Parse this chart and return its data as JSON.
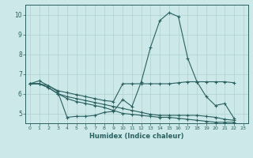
{
  "xlabel": "Humidex (Indice chaleur)",
  "bg_color": "#cce8e8",
  "grid_color": "#b0d0d0",
  "line_color": "#2a6060",
  "xlim": [
    -0.5,
    23.5
  ],
  "ylim": [
    4.5,
    10.5
  ],
  "yticks": [
    5,
    6,
    7,
    8,
    9,
    10
  ],
  "xticks": [
    0,
    1,
    2,
    3,
    4,
    5,
    6,
    7,
    8,
    9,
    10,
    11,
    12,
    13,
    14,
    15,
    16,
    17,
    18,
    19,
    20,
    21,
    22,
    23
  ],
  "series": [
    {
      "x": [
        0,
        1,
        2,
        3,
        4,
        5,
        6,
        7,
        8,
        9,
        10,
        11,
        12,
        13,
        14,
        15,
        16,
        17,
        18,
        19,
        20,
        21,
        22
      ],
      "y": [
        6.5,
        6.65,
        6.4,
        6.1,
        4.8,
        4.85,
        4.85,
        4.9,
        5.05,
        5.1,
        5.7,
        5.35,
        6.6,
        8.35,
        9.7,
        10.1,
        9.9,
        7.8,
        6.6,
        5.85,
        5.4,
        5.5,
        4.75
      ]
    },
    {
      "x": [
        0,
        1,
        2,
        3,
        4,
        5,
        6,
        7,
        8,
        9,
        10,
        11,
        12,
        13,
        14,
        15,
        16,
        17,
        18,
        19,
        20,
        21,
        22
      ],
      "y": [
        6.5,
        6.5,
        6.4,
        6.15,
        6.05,
        5.95,
        5.85,
        5.75,
        5.65,
        5.6,
        6.5,
        6.5,
        6.5,
        6.5,
        6.5,
        6.5,
        6.55,
        6.6,
        6.6,
        6.6,
        6.6,
        6.6,
        6.55
      ]
    },
    {
      "x": [
        0,
        1,
        2,
        3,
        4,
        5,
        6,
        7,
        8,
        9,
        10,
        11,
        12,
        13,
        14,
        15,
        16,
        17,
        18,
        19,
        20,
        21,
        22
      ],
      "y": [
        6.5,
        6.5,
        6.3,
        6.0,
        5.85,
        5.75,
        5.65,
        5.55,
        5.45,
        5.35,
        5.25,
        5.15,
        5.05,
        4.95,
        4.9,
        4.9,
        4.9,
        4.9,
        4.9,
        4.85,
        4.8,
        4.7,
        4.65
      ]
    },
    {
      "x": [
        0,
        1,
        2,
        3,
        4,
        5,
        6,
        7,
        8,
        9,
        10,
        11,
        12,
        13,
        14,
        15,
        16,
        17,
        18,
        19,
        20,
        21,
        22
      ],
      "y": [
        6.5,
        6.5,
        6.3,
        6.0,
        5.75,
        5.6,
        5.5,
        5.4,
        5.3,
        5.15,
        5.0,
        4.95,
        4.9,
        4.85,
        4.8,
        4.8,
        4.75,
        4.7,
        4.65,
        4.6,
        4.55,
        4.55,
        4.55
      ]
    }
  ]
}
